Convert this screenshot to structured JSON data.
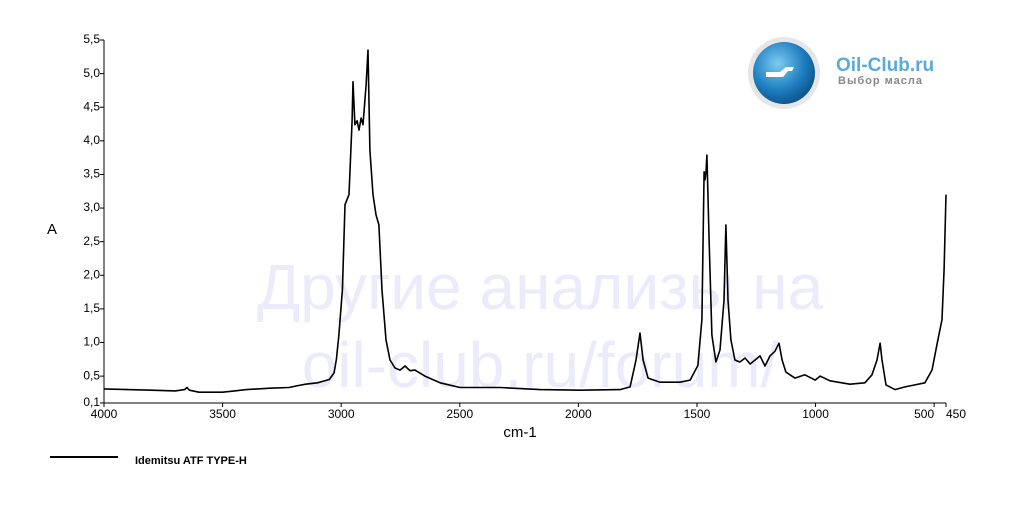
{
  "chart_data": {
    "type": "line",
    "watermark": [
      "Другие анализы на",
      "oil-club.ru/forum/"
    ],
    "logo": {
      "title": "Oil-Club.ru",
      "subtitle": "Выбор масла"
    },
    "x_label": "cm-1",
    "y_label": "A",
    "xlim": [
      4000,
      450
    ],
    "ylim": [
      0.1,
      5.5
    ],
    "xticks": [
      4000,
      3500,
      3000,
      2500,
      2000,
      1500,
      1000,
      500,
      450
    ],
    "yticks": [
      {
        "value": 0.1,
        "label": "0,1"
      },
      {
        "value": 0.5,
        "label": "0,5"
      },
      {
        "value": 1.0,
        "label": "1,0"
      },
      {
        "value": 1.5,
        "label": "1,5"
      },
      {
        "value": 2.0,
        "label": "2,0"
      },
      {
        "value": 2.5,
        "label": "2,5"
      },
      {
        "value": 3.0,
        "label": "3,0"
      },
      {
        "value": 3.5,
        "label": "3,5"
      },
      {
        "value": 4.0,
        "label": "4,0"
      },
      {
        "value": 4.5,
        "label": "4,5"
      },
      {
        "value": 5.0,
        "label": "5,0"
      },
      {
        "value": 5.5,
        "label": "5,5"
      }
    ],
    "x": [
      4000,
      3900,
      3800,
      3700,
      3660,
      3650,
      3640,
      3600,
      3550,
      3500,
      3450,
      3400,
      3300,
      3220,
      3180,
      3150,
      3100,
      3050,
      3030,
      3020,
      3010,
      2995,
      2984,
      2967,
      2954,
      2950,
      2942,
      2933,
      2925,
      2916,
      2908,
      2895,
      2887,
      2879,
      2866,
      2853,
      2841,
      2828,
      2811,
      2794,
      2773,
      2752,
      2731,
      2710,
      2689,
      2647,
      2583,
      2499,
      2330,
      2162,
      1993,
      1824,
      1782,
      1757,
      1740,
      1727,
      1706,
      1656,
      1572,
      1529,
      1496,
      1479,
      1470,
      1466,
      1462,
      1458,
      1449,
      1437,
      1420,
      1403,
      1386,
      1378,
      1369,
      1357,
      1340,
      1319,
      1297,
      1276,
      1255,
      1234,
      1213,
      1192,
      1171,
      1154,
      1141,
      1125,
      1087,
      1045,
      1002,
      981,
      939,
      855,
      792,
      762,
      741,
      728,
      720,
      703,
      665,
      623,
      581,
      539,
      509,
      484,
      467,
      458,
      450
    ],
    "series": [
      {
        "name": "Idemitsu ATF TYPE-H",
        "color": "#000000",
        "values": [
          0.31,
          0.3,
          0.29,
          0.28,
          0.3,
          0.33,
          0.29,
          0.26,
          0.26,
          0.26,
          0.28,
          0.3,
          0.32,
          0.33,
          0.36,
          0.38,
          0.4,
          0.45,
          0.55,
          0.75,
          1.1,
          1.78,
          3.05,
          3.2,
          4.3,
          4.88,
          4.24,
          4.3,
          4.16,
          4.34,
          4.24,
          4.83,
          5.35,
          3.86,
          3.2,
          2.9,
          2.75,
          1.78,
          1.04,
          0.74,
          0.62,
          0.59,
          0.65,
          0.58,
          0.59,
          0.5,
          0.4,
          0.33,
          0.33,
          0.3,
          0.29,
          0.3,
          0.34,
          0.74,
          1.14,
          0.74,
          0.47,
          0.41,
          0.41,
          0.44,
          0.66,
          1.34,
          3.54,
          3.42,
          3.54,
          3.79,
          2.53,
          1.11,
          0.71,
          0.89,
          1.63,
          2.75,
          1.63,
          1.04,
          0.74,
          0.71,
          0.77,
          0.68,
          0.74,
          0.8,
          0.65,
          0.8,
          0.87,
          0.99,
          0.74,
          0.56,
          0.47,
          0.52,
          0.44,
          0.5,
          0.43,
          0.38,
          0.4,
          0.52,
          0.74,
          0.99,
          0.74,
          0.37,
          0.3,
          0.34,
          0.37,
          0.4,
          0.59,
          1.04,
          1.34,
          2.09,
          3.2
        ]
      }
    ]
  }
}
